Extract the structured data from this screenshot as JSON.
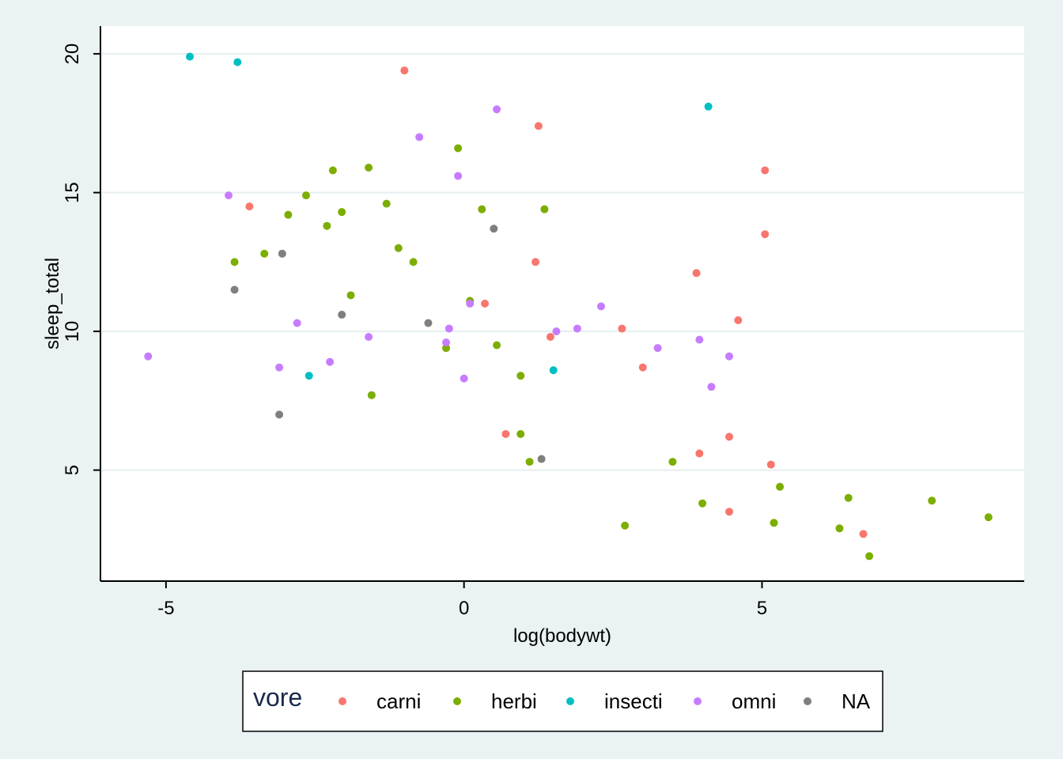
{
  "chart_data": {
    "type": "scatter",
    "xlabel": "log(bodywt)",
    "ylabel": "sleep_total",
    "xlim": [
      -6.1,
      9.4
    ],
    "ylim": [
      1.0,
      21.0
    ],
    "x_ticks": [
      -5,
      0,
      5
    ],
    "x_tick_labels": [
      "-5",
      "0",
      "5"
    ],
    "y_ticks": [
      5,
      10,
      15,
      20
    ],
    "y_tick_labels": [
      "5",
      "10",
      "15",
      "20"
    ],
    "grid": "horizontal",
    "legend": {
      "title": "vore",
      "placement": "bottom"
    },
    "colors": {
      "plot_background": "#ffffff",
      "page_background": "#eaf2f3",
      "gridline": "#e6eef0",
      "carni": "#f8766d",
      "herbi": "#7cae00",
      "insecti": "#00bfc4",
      "omni": "#c77cff",
      "NA": "#7f7f7f"
    },
    "series": [
      {
        "name": "carni",
        "points": [
          [
            -1.0,
            19.4
          ],
          [
            1.25,
            17.4
          ],
          [
            5.05,
            15.8
          ],
          [
            -3.6,
            14.5
          ],
          [
            5.05,
            13.5
          ],
          [
            1.2,
            12.5
          ],
          [
            3.9,
            12.1
          ],
          [
            0.35,
            11.0
          ],
          [
            4.6,
            10.4
          ],
          [
            2.65,
            10.1
          ],
          [
            1.45,
            9.8
          ],
          [
            3.0,
            8.7
          ],
          [
            0.7,
            6.3
          ],
          [
            4.45,
            6.2
          ],
          [
            3.95,
            5.6
          ],
          [
            5.15,
            5.2
          ],
          [
            4.45,
            3.5
          ],
          [
            6.7,
            2.7
          ]
        ]
      },
      {
        "name": "herbi",
        "points": [
          [
            -0.1,
            16.6
          ],
          [
            -1.6,
            15.9
          ],
          [
            -2.2,
            15.8
          ],
          [
            -2.65,
            14.9
          ],
          [
            -1.3,
            14.6
          ],
          [
            0.3,
            14.4
          ],
          [
            1.35,
            14.4
          ],
          [
            -2.05,
            14.3
          ],
          [
            -2.95,
            14.2
          ],
          [
            -2.3,
            13.8
          ],
          [
            -1.1,
            13.0
          ],
          [
            -3.35,
            12.8
          ],
          [
            -3.85,
            12.5
          ],
          [
            -0.85,
            12.5
          ],
          [
            -1.9,
            11.3
          ],
          [
            0.1,
            11.1
          ],
          [
            0.55,
            9.5
          ],
          [
            -0.3,
            9.4
          ],
          [
            0.95,
            8.4
          ],
          [
            -1.55,
            7.7
          ],
          [
            0.95,
            6.3
          ],
          [
            1.1,
            5.3
          ],
          [
            3.5,
            5.3
          ],
          [
            5.3,
            4.4
          ],
          [
            6.45,
            4.0
          ],
          [
            7.85,
            3.9
          ],
          [
            4.0,
            3.8
          ],
          [
            8.8,
            3.3
          ],
          [
            5.2,
            3.1
          ],
          [
            2.7,
            3.0
          ],
          [
            6.3,
            2.9
          ],
          [
            6.8,
            1.9
          ]
        ]
      },
      {
        "name": "insecti",
        "points": [
          [
            -4.6,
            19.9
          ],
          [
            -3.8,
            19.7
          ],
          [
            4.1,
            18.1
          ],
          [
            -2.6,
            8.4
          ],
          [
            1.5,
            8.6
          ]
        ]
      },
      {
        "name": "omni",
        "points": [
          [
            0.55,
            18.0
          ],
          [
            -0.75,
            17.0
          ],
          [
            -0.1,
            15.6
          ],
          [
            -3.95,
            14.9
          ],
          [
            0.1,
            11.0
          ],
          [
            2.3,
            10.9
          ],
          [
            -2.8,
            10.3
          ],
          [
            -0.25,
            10.1
          ],
          [
            1.9,
            10.1
          ],
          [
            1.55,
            10.0
          ],
          [
            -1.6,
            9.8
          ],
          [
            3.95,
            9.7
          ],
          [
            -0.3,
            9.6
          ],
          [
            3.25,
            9.4
          ],
          [
            -5.3,
            9.1
          ],
          [
            4.45,
            9.1
          ],
          [
            -2.25,
            8.9
          ],
          [
            -3.1,
            8.7
          ],
          [
            0.0,
            8.3
          ],
          [
            4.15,
            8.0
          ]
        ]
      },
      {
        "name": "NA",
        "points": [
          [
            0.5,
            13.7
          ],
          [
            -3.05,
            12.8
          ],
          [
            -3.85,
            11.5
          ],
          [
            -2.05,
            10.6
          ],
          [
            -0.6,
            10.3
          ],
          [
            -3.1,
            7.0
          ],
          [
            1.3,
            5.4
          ]
        ]
      }
    ]
  }
}
